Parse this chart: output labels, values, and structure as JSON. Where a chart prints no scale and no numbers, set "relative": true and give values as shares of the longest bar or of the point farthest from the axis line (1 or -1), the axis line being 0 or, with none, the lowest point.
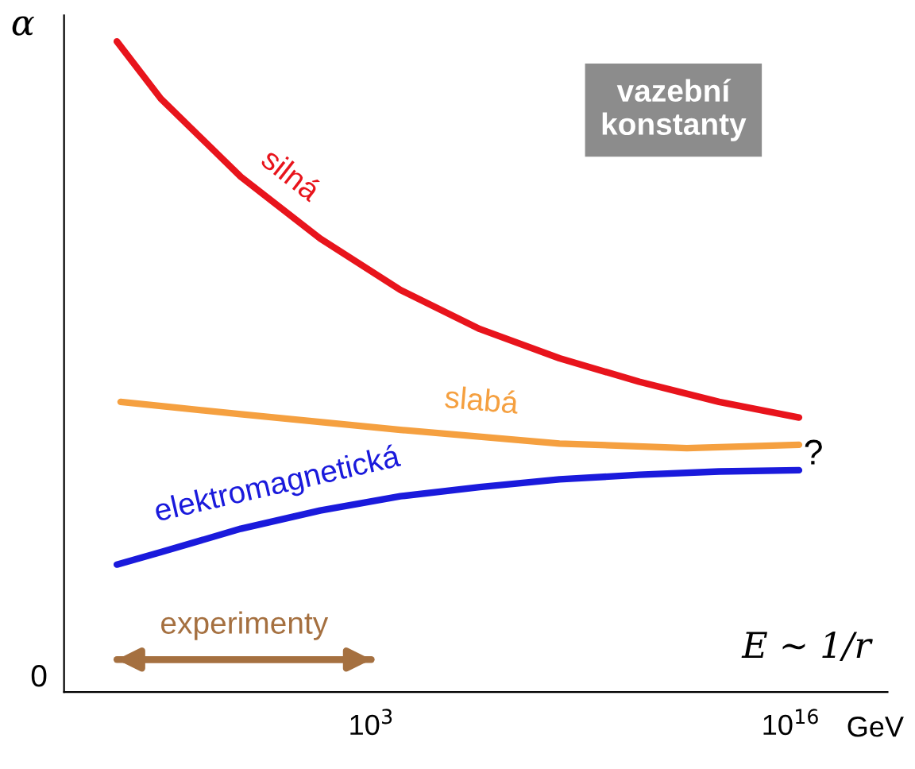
{
  "chart_data": {
    "type": "line",
    "relative": true,
    "ylabel": "α",
    "xlabel": "GeV",
    "log": "x",
    "xlim": [
      3e-07,
      1e+19
    ],
    "xticks": [
      {
        "value": 1000,
        "label": "10$^{3}$"
      },
      {
        "value": 1e+16,
        "label": "10$^{16}$"
      }
    ],
    "x": [
      1.3e-05,
      0.0003,
      0.09,
      26,
      8000,
      2300000.0,
      680000000.0,
      200000000000.0,
      60000000000000.0,
      1.8e+16
    ],
    "series": [
      {
        "name": "silná",
        "color": "#e8141c",
        "values": [
          1.0,
          0.912,
          0.792,
          0.697,
          0.618,
          0.558,
          0.513,
          0.477,
          0.446,
          0.422
        ]
      },
      {
        "name": "slabá",
        "color": "#f5a040",
        "x": [
          1.7e-05,
          0.09,
          8000,
          680000000.0,
          6000000000000.0,
          1.8e+16
        ],
        "values": [
          0.446,
          0.427,
          0.403,
          0.382,
          0.375,
          0.38
        ]
      },
      {
        "name": "elektromagnetická",
        "color": "#1a1adc",
        "values": [
          0.196,
          0.215,
          0.251,
          0.279,
          0.301,
          0.315,
          0.327,
          0.334,
          0.339,
          0.341
        ]
      },
      {
        "name": "experimenty",
        "color": "#a57040",
        "x": [
          1.3e-05,
          1000
        ],
        "values": [
          0.05,
          0.05
        ]
      }
    ],
    "annotations": [
      "vazební\nkonstanty",
      "?",
      "E ~ 1/r",
      "0"
    ],
    "grid": false,
    "legend": false,
    "marker": "none",
    "line_style": "solid"
  }
}
